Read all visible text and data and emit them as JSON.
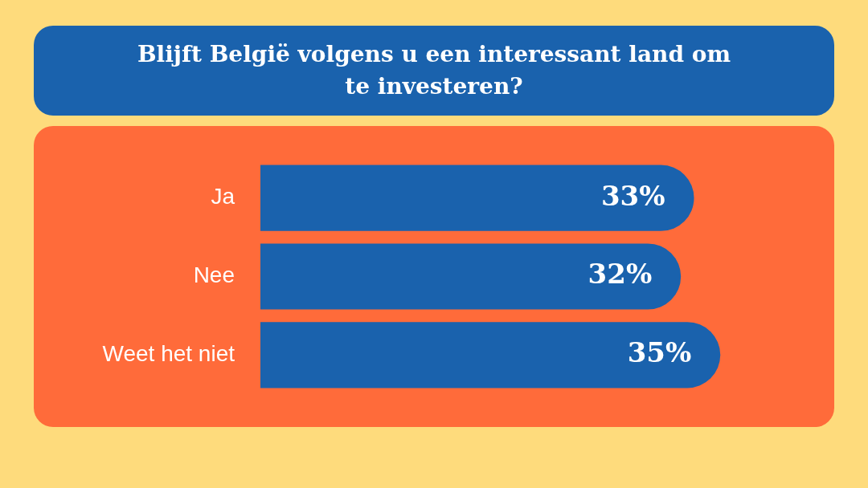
{
  "chart_data": {
    "type": "bar",
    "orientation": "horizontal",
    "title": "Blijft België volgens u een interessant land om te investeren?",
    "categories": [
      "Ja",
      "Nee",
      "Weet het niet"
    ],
    "values": [
      33,
      32,
      35
    ],
    "value_labels": [
      "33%",
      "32%",
      "35%"
    ],
    "color": "#1a62ad",
    "grid": false,
    "legend": false
  }
}
